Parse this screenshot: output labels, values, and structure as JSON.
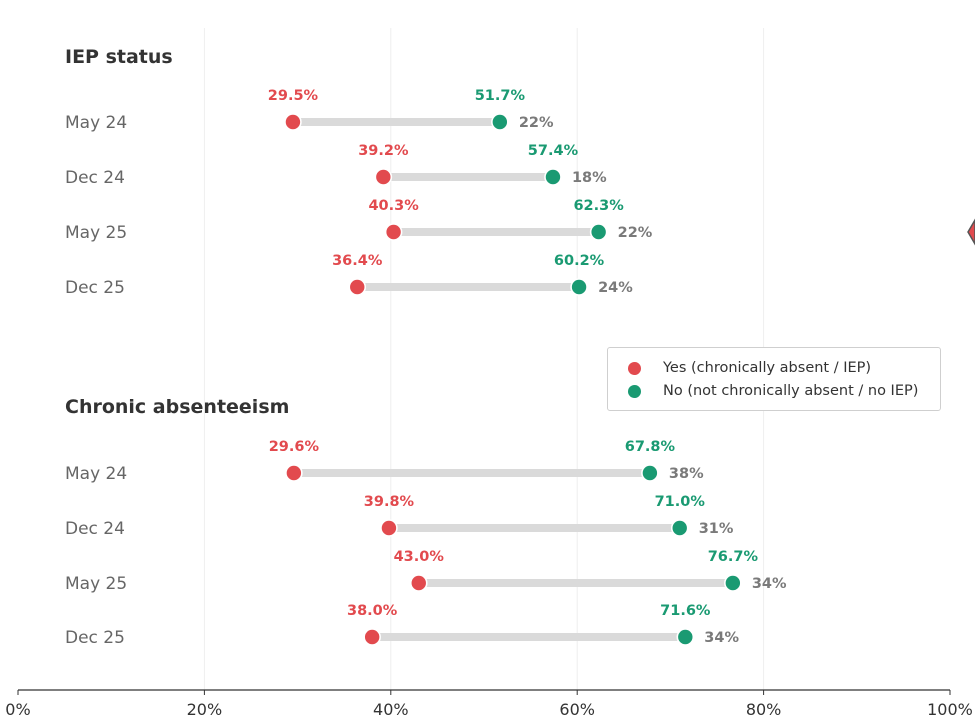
{
  "colors": {
    "yes": "#e24a4e",
    "no": "#1a9a72",
    "connector": "#dadada",
    "gap": "#7a7a7a",
    "grid": "#eeeeee"
  },
  "legend": {
    "yes_label": "Yes (chronically absent / IEP)",
    "no_label": "No (not chronically absent / no IEP)"
  },
  "chart_data": {
    "type": "dumbbell",
    "xlim": [
      0,
      100
    ],
    "x_ticks": [
      "0%",
      "20%",
      "40%",
      "60%",
      "80%",
      "100%"
    ],
    "legend_position": "center-right",
    "grid": "vertical",
    "panels": [
      {
        "title": "IEP status",
        "rows": [
          {
            "label": "May 24",
            "yes": 29.5,
            "no": 51.7,
            "yes_text": "29.5%",
            "no_text": "51.7%",
            "gap_text": "22%"
          },
          {
            "label": "Dec 24",
            "yes": 39.2,
            "no": 57.4,
            "yes_text": "39.2%",
            "no_text": "57.4%",
            "gap_text": "18%"
          },
          {
            "label": "May 25",
            "yes": 40.3,
            "no": 62.3,
            "yes_text": "40.3%",
            "no_text": "62.3%",
            "gap_text": "22%"
          },
          {
            "label": "Dec 25",
            "yes": 36.4,
            "no": 60.2,
            "yes_text": "36.4%",
            "no_text": "60.2%",
            "gap_text": "24%"
          }
        ]
      },
      {
        "title": "Chronic absenteeism",
        "rows": [
          {
            "label": "May 24",
            "yes": 29.6,
            "no": 67.8,
            "yes_text": "29.6%",
            "no_text": "67.8%",
            "gap_text": "38%"
          },
          {
            "label": "Dec 24",
            "yes": 39.8,
            "no": 71.0,
            "yes_text": "39.8%",
            "no_text": "71.0%",
            "gap_text": "31%"
          },
          {
            "label": "May 25",
            "yes": 43.0,
            "no": 76.7,
            "yes_text": "43.0%",
            "no_text": "76.7%",
            "gap_text": "34%"
          },
          {
            "label": "Dec 25",
            "yes": 38.0,
            "no": 71.6,
            "yes_text": "38.0%",
            "no_text": "71.6%",
            "gap_text": "34%"
          }
        ]
      }
    ]
  }
}
